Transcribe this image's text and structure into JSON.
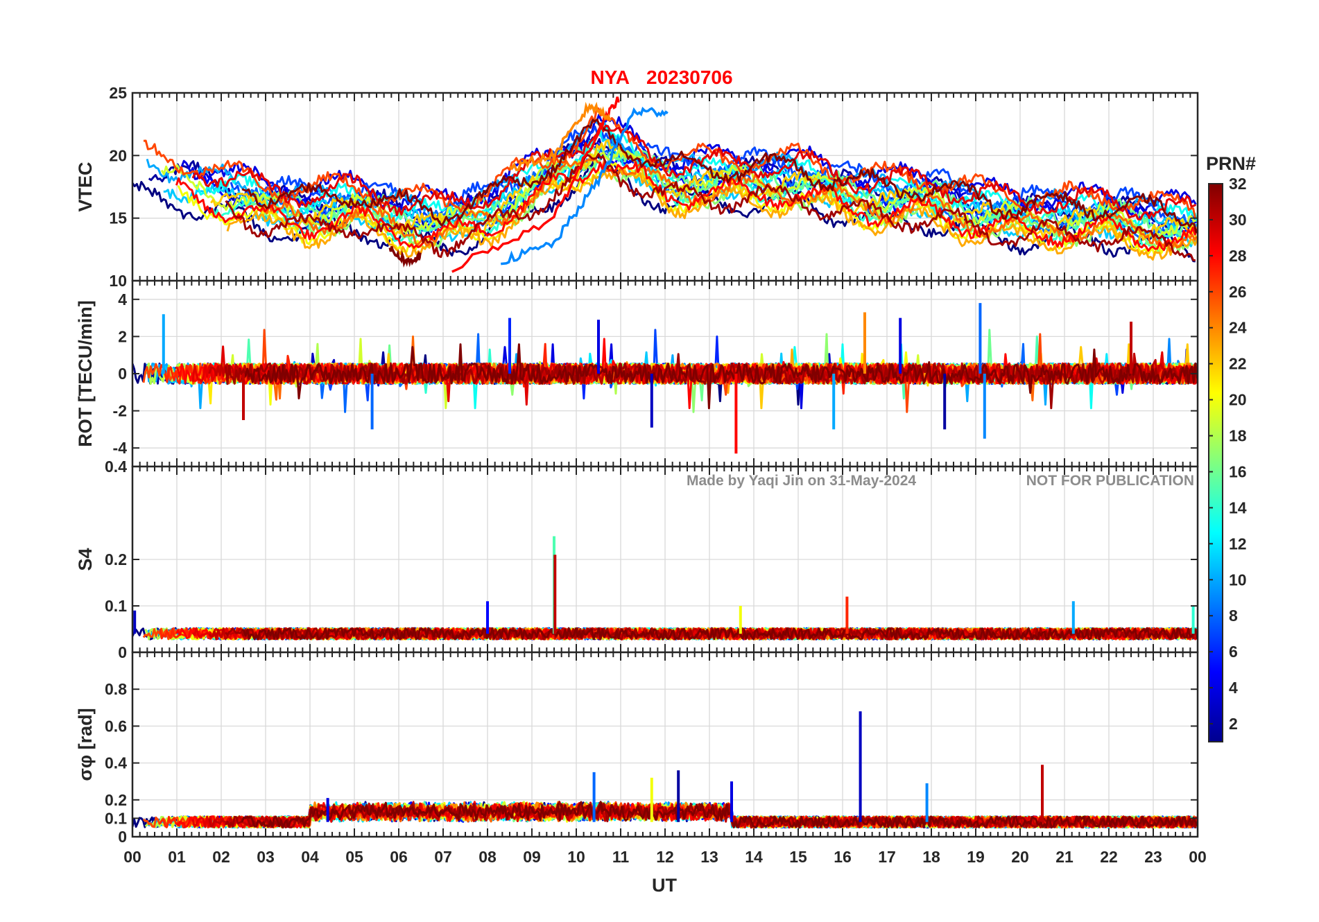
{
  "figure": {
    "title_station": "NYA",
    "title_date": "20230706",
    "title_color": "#ff0000",
    "watermark_left": "Made by Yaqi Jin on 31-May-2024",
    "watermark_right": "NOT FOR PUBLICATION",
    "x_axis_label": "UT",
    "colorbar_label": "PRN#",
    "colorbar_ticks": [
      "32",
      "30",
      "28",
      "26",
      "24",
      "22",
      "20",
      "18",
      "16",
      "14",
      "12",
      "10",
      "8",
      "6",
      "4",
      "2"
    ],
    "colormap": "jet"
  },
  "chart_data": [
    {
      "type": "line",
      "panel": "vtec",
      "ylabel": "VTEC",
      "ylim": [
        10,
        25
      ],
      "yticks": [
        10,
        15,
        20,
        25
      ],
      "ytick_labels": [
        "10",
        "15",
        "20",
        "25"
      ],
      "x_unit": "UT hour",
      "xlim": [
        0,
        24
      ],
      "xtick_labels": [
        "00",
        "01",
        "02",
        "03",
        "04",
        "05",
        "06",
        "07",
        "08",
        "09",
        "10",
        "11",
        "12",
        "13",
        "14",
        "15",
        "16",
        "17",
        "18",
        "19",
        "20",
        "21",
        "22",
        "23",
        "00"
      ],
      "grid": true,
      "series_color_by": "PRN (1-32)",
      "trend_knots": {
        "x": [
          0,
          1,
          2,
          3,
          4,
          5,
          6,
          7,
          8,
          9,
          10,
          10.5,
          11,
          12,
          13,
          14,
          15,
          16,
          17,
          18,
          19,
          20,
          21,
          22,
          23,
          24
        ],
        "y": [
          18.5,
          18,
          17,
          16,
          15.5,
          16,
          15,
          14.5,
          15.5,
          17.5,
          19.5,
          21,
          20,
          18,
          18,
          18,
          18,
          17,
          16.5,
          16.5,
          15.5,
          15,
          15,
          15,
          14.5,
          14
        ]
      },
      "highlights": [
        {
          "prn": 28,
          "x": [
            7.2,
            9.5,
            10.5,
            11
          ],
          "y": [
            11,
            15,
            22,
            24.8
          ]
        },
        {
          "prn": 9,
          "x": [
            8.3,
            9.5,
            10.5,
            11.3,
            12.1
          ],
          "y": [
            11.5,
            13,
            18,
            23.5,
            23.5
          ]
        },
        {
          "prn": 24,
          "x": [
            8.5,
            9.5,
            10.3,
            10.8
          ],
          "y": [
            19,
            20,
            24,
            23
          ]
        },
        {
          "prn": 32,
          "x": [
            5.8,
            6.2,
            6.5
          ],
          "y": [
            12.5,
            11.5,
            12
          ]
        }
      ]
    },
    {
      "type": "line",
      "panel": "rot",
      "ylabel": "ROT [TECU/min]",
      "ylim": [
        -5,
        5
      ],
      "yticks": [
        -4,
        -2,
        0,
        2,
        4
      ],
      "ytick_labels": [
        "-4",
        "-2",
        "0",
        "2",
        "4"
      ],
      "xlim": [
        0,
        24
      ],
      "grid": true,
      "baseline": 0,
      "spikes": [
        {
          "x": 0.7,
          "y": 3.2,
          "prn": 10
        },
        {
          "x": 5.4,
          "y": -3.0,
          "prn": 8
        },
        {
          "x": 8.5,
          "y": 3.0,
          "prn": 6
        },
        {
          "x": 10.5,
          "y": 2.9,
          "prn": 4
        },
        {
          "x": 11.7,
          "y": -2.9,
          "prn": 3
        },
        {
          "x": 13.6,
          "y": -4.3,
          "prn": 28
        },
        {
          "x": 15.8,
          "y": -3.0,
          "prn": 10
        },
        {
          "x": 16.5,
          "y": 3.3,
          "prn": 24
        },
        {
          "x": 17.3,
          "y": 3.0,
          "prn": 4
        },
        {
          "x": 18.3,
          "y": -3.0,
          "prn": 2
        },
        {
          "x": 19.1,
          "y": 3.8,
          "prn": 8
        },
        {
          "x": 19.2,
          "y": -3.5,
          "prn": 9
        },
        {
          "x": 22.5,
          "y": 2.8,
          "prn": 30
        },
        {
          "x": 2.5,
          "y": -2.5,
          "prn": 30
        }
      ]
    },
    {
      "type": "line",
      "panel": "s4",
      "ylabel": "S4",
      "ylim": [
        0,
        0.4
      ],
      "yticks": [
        0,
        0.1,
        0.2,
        0.4
      ],
      "ytick_labels": [
        "0",
        "0.1",
        "0.2",
        "0.4"
      ],
      "xlim": [
        0,
        24
      ],
      "grid": true,
      "baseline": 0.04,
      "spikes": [
        {
          "x": 9.5,
          "y": 0.25,
          "prn": 15
        },
        {
          "x": 9.52,
          "y": 0.21,
          "prn": 30
        },
        {
          "x": 0.05,
          "y": 0.09,
          "prn": 3
        },
        {
          "x": 8.0,
          "y": 0.11,
          "prn": 5
        },
        {
          "x": 16.1,
          "y": 0.12,
          "prn": 27
        },
        {
          "x": 21.2,
          "y": 0.11,
          "prn": 10
        },
        {
          "x": 13.7,
          "y": 0.1,
          "prn": 20
        },
        {
          "x": 23.9,
          "y": 0.1,
          "prn": 14
        }
      ]
    },
    {
      "type": "line",
      "panel": "sigma_phi",
      "ylabel": "σφ [rad]",
      "ylim": [
        0,
        1.0
      ],
      "yticks": [
        0,
        0.1,
        0.2,
        0.4,
        0.6,
        0.8
      ],
      "ytick_labels": [
        "0",
        "0.1",
        "0.2",
        "0.4",
        "0.6",
        "0.8"
      ],
      "xlim": [
        0,
        24
      ],
      "grid": true,
      "baseline": 0.08,
      "spikes": [
        {
          "x": 16.4,
          "y": 0.68,
          "prn": 3
        },
        {
          "x": 20.5,
          "y": 0.39,
          "prn": 30
        },
        {
          "x": 12.3,
          "y": 0.36,
          "prn": 2
        },
        {
          "x": 10.4,
          "y": 0.35,
          "prn": 8
        },
        {
          "x": 11.7,
          "y": 0.32,
          "prn": 20
        },
        {
          "x": 17.9,
          "y": 0.29,
          "prn": 9
        },
        {
          "x": 13.5,
          "y": 0.3,
          "prn": 4
        },
        {
          "x": 4.4,
          "y": 0.21,
          "prn": 4
        }
      ]
    }
  ]
}
